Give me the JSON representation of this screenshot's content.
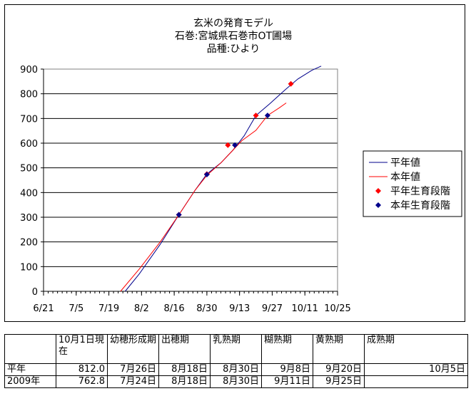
{
  "chart_data": {
    "type": "line",
    "title_lines": [
      "玄米の発育モデル",
      "石巻:宮城県石巻市OT圃場",
      "品種:ひより"
    ],
    "xlabel": "",
    "ylabel": "",
    "x_ticks": [
      "6/21",
      "7/5",
      "7/19",
      "8/2",
      "8/16",
      "8/30",
      "9/13",
      "9/27",
      "10/11",
      "10/25"
    ],
    "xlim": [
      "6/21",
      "10/25"
    ],
    "ylim": [
      0,
      900
    ],
    "y_ticks": [
      0,
      100,
      200,
      300,
      400,
      500,
      600,
      700,
      800,
      900
    ],
    "grid": "horizontal",
    "legend_position": "right",
    "series": [
      {
        "name": "平年値",
        "type": "line",
        "color": "#00008B",
        "points": [
          [
            "7/26",
            0
          ],
          [
            "8/1",
            70
          ],
          [
            "8/10",
            190
          ],
          [
            "8/18",
            310
          ],
          [
            "8/25",
            410
          ],
          [
            "8/30",
            475
          ],
          [
            "9/5",
            520
          ],
          [
            "9/10",
            570
          ],
          [
            "9/15",
            630
          ],
          [
            "9/20",
            712
          ],
          [
            "9/26",
            760
          ],
          [
            "10/3",
            820
          ],
          [
            "10/8",
            860
          ],
          [
            "10/14",
            895
          ],
          [
            "10/18",
            912
          ]
        ]
      },
      {
        "name": "本年値",
        "type": "line",
        "color": "#FF0000",
        "points": [
          [
            "7/24",
            0
          ],
          [
            "8/1",
            90
          ],
          [
            "8/10",
            200
          ],
          [
            "8/18",
            310
          ],
          [
            "8/25",
            410
          ],
          [
            "8/30",
            470
          ],
          [
            "9/5",
            520
          ],
          [
            "9/10",
            570
          ],
          [
            "9/14",
            610
          ],
          [
            "9/20",
            652
          ],
          [
            "9/25",
            712
          ],
          [
            "9/30",
            743
          ],
          [
            "10/3",
            763
          ]
        ]
      },
      {
        "name": "平年生育段階",
        "type": "scatter",
        "marker": "diamond",
        "color": "#FF0000",
        "points": [
          [
            "8/18",
            310
          ],
          [
            "8/30",
            475
          ],
          [
            "9/8",
            592
          ],
          [
            "9/20",
            712
          ],
          [
            "10/5",
            840
          ]
        ]
      },
      {
        "name": "本年生育段階",
        "type": "scatter",
        "marker": "diamond",
        "color": "#00008B",
        "points": [
          [
            "8/18",
            310
          ],
          [
            "8/30",
            473
          ],
          [
            "9/11",
            592
          ],
          [
            "9/25",
            712
          ]
        ]
      }
    ]
  },
  "table": {
    "header": [
      "",
      "10月1日現在",
      "幼穂形成期",
      "出穂期",
      "乳熟期",
      "糊熟期",
      "黄熟期",
      "成熟期"
    ],
    "rows": [
      [
        "平年",
        "812.0",
        "7月26日",
        "8月18日",
        "8月30日",
        "9月8日",
        "9月20日",
        "10月5日"
      ],
      [
        "2009年",
        "762.8",
        "7月24日",
        "8月18日",
        "8月30日",
        "9月11日",
        "9月25日",
        ""
      ]
    ]
  }
}
